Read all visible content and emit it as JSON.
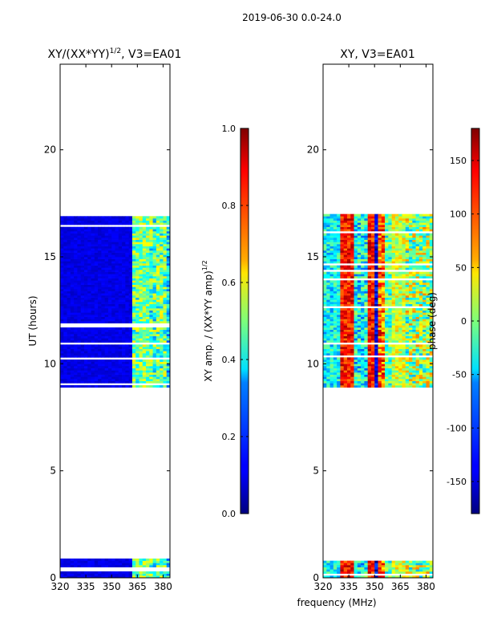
{
  "suptitle": "2019-06-30 0.0-24.0",
  "shared": {
    "xlabel": "frequency (MHz)",
    "ylabel": "UT (hours)"
  },
  "chart_data": [
    {
      "type": "heatmap",
      "title_main": "XY/(XX*YY)",
      "title_sup": "1/2",
      "title_tail": ", V3=EA01",
      "xlim": [
        320,
        384
      ],
      "ylim": [
        0,
        24
      ],
      "xticks": [
        "320",
        "335",
        "350",
        "365",
        "380"
      ],
      "yticks": [
        "0",
        "5",
        "10",
        "15",
        "20"
      ],
      "colorbar": {
        "label_main": "XY amp. / (XX*YY amp)",
        "label_sup": "1/2",
        "range": [
          0.0,
          1.0
        ],
        "ticks": [
          "0.0",
          "0.2",
          "0.4",
          "0.6",
          "0.8",
          "1.0"
        ]
      },
      "data_blocks_hours": [
        [
          0.0,
          0.9
        ],
        [
          8.9,
          17.0
        ]
      ]
    },
    {
      "type": "heatmap",
      "title": "XY, V3=EA01",
      "xlim": [
        320,
        384
      ],
      "ylim": [
        0,
        24
      ],
      "xticks": [
        "320",
        "335",
        "350",
        "365",
        "380"
      ],
      "yticks": [
        "0",
        "5",
        "10",
        "15",
        "20"
      ],
      "colorbar": {
        "label": "phase (deg)",
        "range": [
          -180,
          180
        ],
        "ticks": [
          "-150",
          "-100",
          "-50",
          "0",
          "50",
          "100",
          "150"
        ]
      },
      "data_blocks_hours": [
        [
          0.0,
          0.9
        ],
        [
          8.9,
          17.0
        ]
      ]
    }
  ]
}
